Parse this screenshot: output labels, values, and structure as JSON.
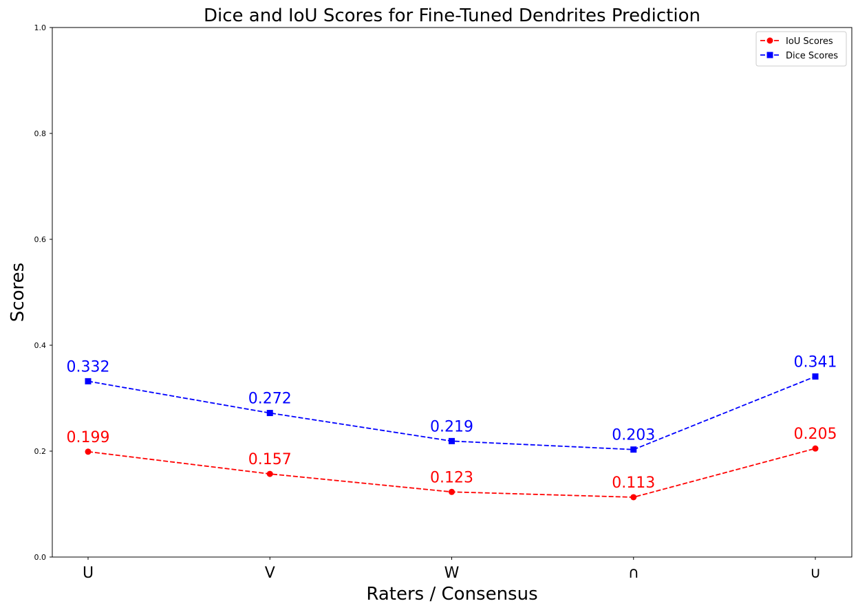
{
  "chart_data": {
    "type": "line",
    "title": "Dice and IoU Scores for Fine-Tuned Dendrites Prediction",
    "xlabel": "Raters / Consensus",
    "ylabel": "Scores",
    "categories": [
      "U",
      "V",
      "W",
      "∩",
      "∪"
    ],
    "ylim": [
      0,
      1
    ],
    "yticks": [
      0.0,
      0.2,
      0.4,
      0.6,
      0.8,
      1.0
    ],
    "ytick_labels": [
      "0.0",
      "0.2",
      "0.4",
      "0.6",
      "0.8",
      "1.0"
    ],
    "grid": false,
    "legend_position": "top-right",
    "series": [
      {
        "name": "IoU Scores",
        "color": "#ff0000",
        "marker": "circle",
        "line_style": "dashed",
        "values": [
          0.199,
          0.157,
          0.123,
          0.113,
          0.205
        ],
        "labels": [
          "0.199",
          "0.157",
          "0.123",
          "0.113",
          "0.205"
        ]
      },
      {
        "name": "Dice Scores",
        "color": "#0000ff",
        "marker": "square",
        "line_style": "dashed",
        "values": [
          0.332,
          0.272,
          0.219,
          0.203,
          0.341
        ],
        "labels": [
          "0.332",
          "0.272",
          "0.219",
          "0.203",
          "0.341"
        ]
      }
    ]
  }
}
